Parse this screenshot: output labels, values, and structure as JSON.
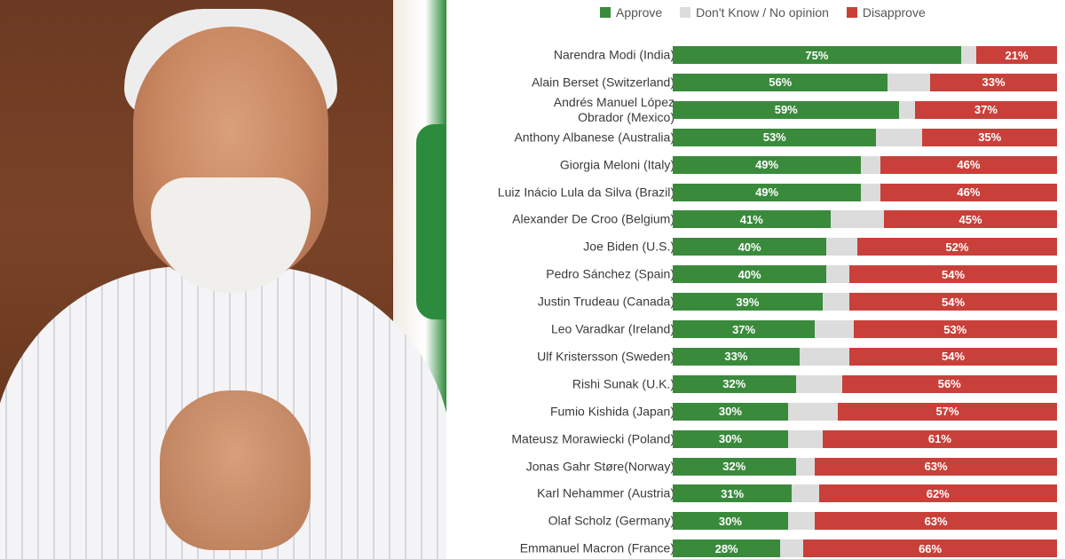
{
  "colors": {
    "approve": "#3a8a3c",
    "neutral": "#dcdcdc",
    "disapprove": "#c9403a"
  },
  "photo": {
    "alt": "portrait"
  },
  "chart_data": {
    "type": "bar",
    "orientation": "horizontal",
    "stacked": true,
    "legend": {
      "placement": "top",
      "entries": [
        "Approve",
        "Don't Know / No opinion",
        "Disapprove"
      ]
    },
    "categories": [
      "Narendra Modi (India)",
      "Alain Berset (Switzerland)",
      "Andrés Manuel López Obrador (Mexico)",
      "Anthony Albanese (Australia)",
      "Giorgia Meloni (Italy)",
      "Luiz Inácio Lula da Silva (Brazil)",
      "Alexander De Croo (Belgium)",
      "Joe Biden (U.S.)",
      "Pedro Sánchez (Spain)",
      "Justin Trudeau (Canada)",
      "Leo Varadkar (Ireland)",
      "Ulf Kristersson (Sweden)",
      "Rishi Sunak (U.K.)",
      "Fumio Kishida (Japan)",
      "Mateusz Morawiecki (Poland)",
      "Jonas Gahr Støre(Norway)",
      "Karl Nehammer (Austria)",
      "Olaf Scholz (Germany)",
      "Emmanuel Macron (France)"
    ],
    "label_lines": [
      [
        "Narendra Modi (India)"
      ],
      [
        "Alain Berset (Switzerland)"
      ],
      [
        "Andrés Manuel López",
        "Obrador (Mexico)"
      ],
      [
        "Anthony Albanese (Australia)"
      ],
      [
        "Giorgia Meloni (Italy)"
      ],
      [
        "Luiz Inácio Lula da Silva (Brazil)"
      ],
      [
        "Alexander De Croo (Belgium)"
      ],
      [
        "Joe Biden (U.S.)"
      ],
      [
        "Pedro Sánchez (Spain)"
      ],
      [
        "Justin Trudeau (Canada)"
      ],
      [
        "Leo Varadkar (Ireland)"
      ],
      [
        "Ulf Kristersson (Sweden)"
      ],
      [
        "Rishi Sunak (U.K.)"
      ],
      [
        "Fumio Kishida (Japan)"
      ],
      [
        "Mateusz Morawiecki (Poland)"
      ],
      [
        "Jonas Gahr Støre(Norway)"
      ],
      [
        "Karl Nehammer (Austria)"
      ],
      [
        "Olaf Scholz (Germany)"
      ],
      [
        "Emmanuel Macron (France)"
      ]
    ],
    "series": [
      {
        "name": "Approve",
        "values": [
          75,
          56,
          59,
          53,
          49,
          49,
          41,
          40,
          40,
          39,
          37,
          33,
          32,
          30,
          30,
          32,
          31,
          30,
          28
        ]
      },
      {
        "name": "Don't Know / No opinion",
        "values": [
          4,
          11,
          4,
          12,
          5,
          5,
          14,
          8,
          6,
          7,
          10,
          13,
          12,
          13,
          9,
          5,
          7,
          7,
          6
        ]
      },
      {
        "name": "Disapprove",
        "values": [
          21,
          33,
          37,
          35,
          46,
          46,
          45,
          52,
          54,
          54,
          53,
          54,
          56,
          57,
          61,
          63,
          62,
          63,
          66
        ]
      }
    ],
    "value_suffix": "%",
    "xlim": [
      0,
      100
    ]
  }
}
